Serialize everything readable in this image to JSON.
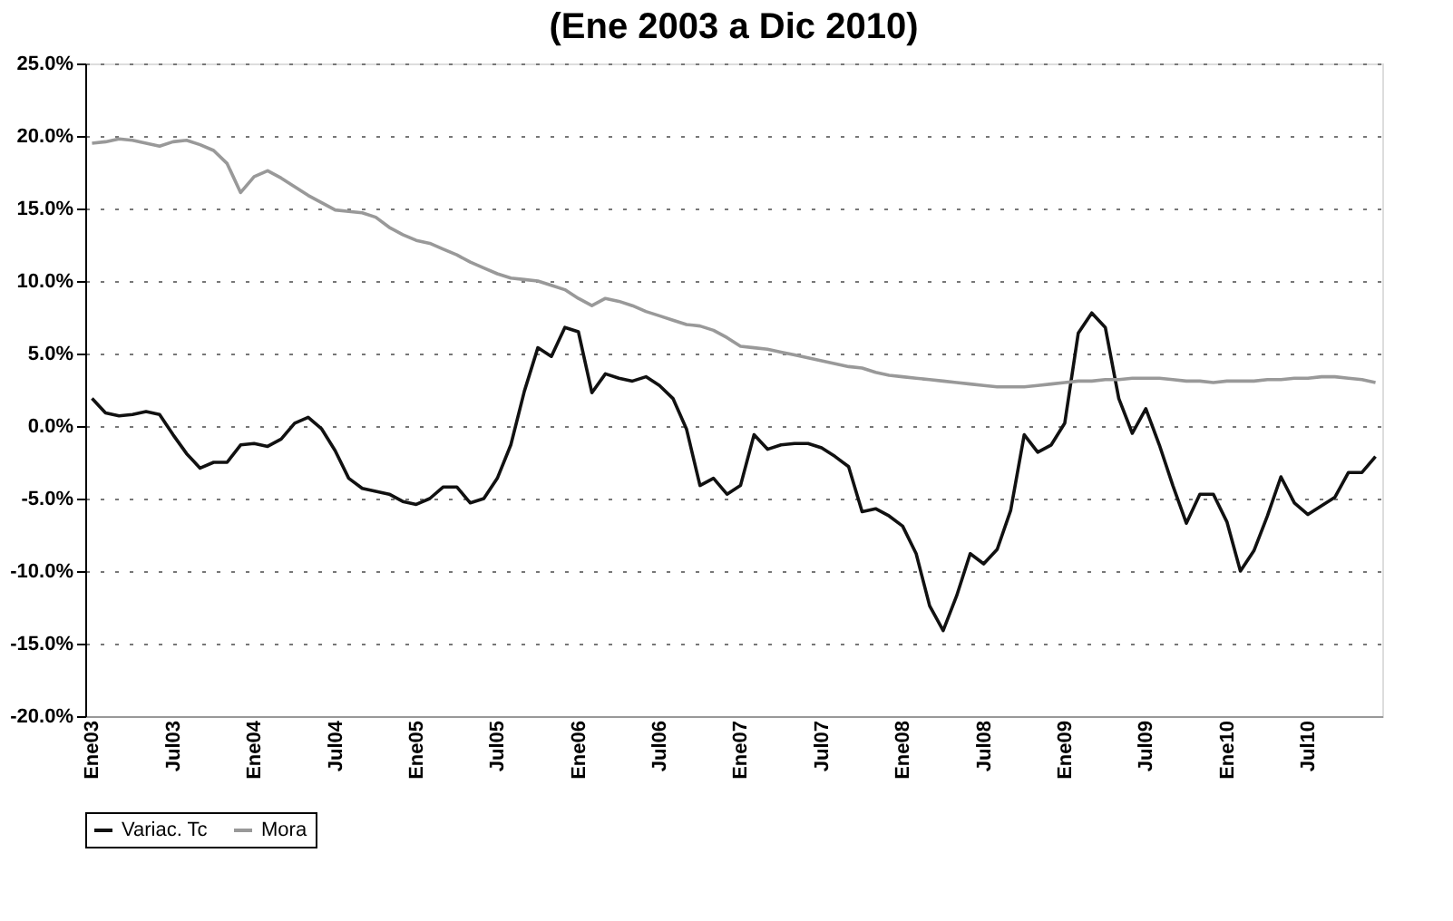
{
  "chart_data": {
    "type": "line",
    "title": "(Ene 2003 a Dic 2010)",
    "categories": [
      "Ene03",
      null,
      null,
      null,
      null,
      null,
      "Jul03",
      null,
      null,
      null,
      null,
      null,
      "Ene04",
      null,
      null,
      null,
      null,
      null,
      "Jul04",
      null,
      null,
      null,
      null,
      null,
      "Ene05",
      null,
      null,
      null,
      null,
      null,
      "Jul05",
      null,
      null,
      null,
      null,
      null,
      "Ene06",
      null,
      null,
      null,
      null,
      null,
      "Jul06",
      null,
      null,
      null,
      null,
      null,
      "Ene07",
      null,
      null,
      null,
      null,
      null,
      "Jul07",
      null,
      null,
      null,
      null,
      null,
      "Ene08",
      null,
      null,
      null,
      null,
      null,
      "Jul08",
      null,
      null,
      null,
      null,
      null,
      "Ene09",
      null,
      null,
      null,
      null,
      null,
      "Jul09",
      null,
      null,
      null,
      null,
      null,
      "Ene10",
      null,
      null,
      null,
      null,
      null,
      "Jul10",
      null,
      null,
      null,
      null,
      null
    ],
    "series": [
      {
        "name": "Variac. Tc",
        "color": "#111111",
        "values": [
          1.9,
          0.9,
          0.7,
          0.8,
          1.0,
          0.8,
          -0.6,
          -1.9,
          -2.9,
          -2.5,
          -2.5,
          -1.3,
          -1.2,
          -1.4,
          -0.9,
          0.2,
          0.6,
          -0.2,
          -1.7,
          -3.6,
          -4.3,
          -4.5,
          -4.7,
          -5.2,
          -5.4,
          -5.0,
          -4.2,
          -4.2,
          -5.3,
          -5.0,
          -3.6,
          -1.3,
          2.4,
          5.4,
          4.8,
          6.8,
          6.5,
          2.3,
          3.6,
          3.3,
          3.1,
          3.4,
          2.8,
          1.9,
          -0.2,
          -4.1,
          -3.6,
          -4.7,
          -4.1,
          -0.6,
          -1.6,
          -1.3,
          -1.2,
          -1.2,
          -1.5,
          -2.1,
          -2.8,
          -5.9,
          -5.7,
          -6.2,
          -6.9,
          -8.8,
          -12.4,
          -14.1,
          -11.7,
          -8.8,
          -9.5,
          -8.5,
          -5.8,
          -0.6,
          -1.8,
          -1.3,
          0.2,
          6.4,
          7.8,
          6.8,
          1.9,
          -0.5,
          1.2,
          -1.3,
          -4.1,
          -6.7,
          -4.7,
          -4.7,
          -6.6,
          -10.0,
          -8.6,
          -6.2,
          -3.5,
          -5.3,
          -6.1,
          -5.5,
          -4.9,
          -3.2,
          -3.2,
          -2.1
        ]
      },
      {
        "name": "Mora",
        "color": "#999999",
        "values": [
          19.5,
          19.6,
          19.8,
          19.7,
          19.5,
          19.3,
          19.6,
          19.7,
          19.4,
          19.0,
          18.1,
          16.1,
          17.2,
          17.6,
          17.1,
          16.5,
          15.9,
          15.4,
          14.9,
          14.8,
          14.7,
          14.4,
          13.7,
          13.2,
          12.8,
          12.6,
          12.2,
          11.8,
          11.3,
          10.9,
          10.5,
          10.2,
          10.1,
          10.0,
          9.7,
          9.4,
          8.8,
          8.3,
          8.8,
          8.6,
          8.3,
          7.9,
          7.6,
          7.3,
          7.0,
          6.9,
          6.6,
          6.1,
          5.5,
          5.4,
          5.3,
          5.1,
          4.9,
          4.7,
          4.5,
          4.3,
          4.1,
          4.0,
          3.7,
          3.5,
          3.4,
          3.3,
          3.2,
          3.1,
          3.0,
          2.9,
          2.8,
          2.7,
          2.7,
          2.7,
          2.8,
          2.9,
          3.0,
          3.1,
          3.1,
          3.2,
          3.2,
          3.3,
          3.3,
          3.3,
          3.2,
          3.1,
          3.1,
          3.0,
          3.1,
          3.1,
          3.1,
          3.2,
          3.2,
          3.3,
          3.3,
          3.4,
          3.4,
          3.3,
          3.2,
          3.0
        ]
      }
    ],
    "ylim": [
      -20,
      25
    ],
    "yticks": [
      {
        "value": -20,
        "label": "-20.0%"
      },
      {
        "value": -15,
        "label": "-15.0%"
      },
      {
        "value": -10,
        "label": "-10.0%"
      },
      {
        "value": -5,
        "label": "-5.0%"
      },
      {
        "value": 0,
        "label": "0.0%"
      },
      {
        "value": 5,
        "label": "5.0%"
      },
      {
        "value": 10,
        "label": "10.0%"
      },
      {
        "value": 15,
        "label": "15.0%"
      },
      {
        "value": 20,
        "label": "20.0%"
      },
      {
        "value": 25,
        "label": "25.0%"
      }
    ],
    "grid": "y",
    "legend": "bottom",
    "line_style": "solid",
    "marker": "none"
  }
}
